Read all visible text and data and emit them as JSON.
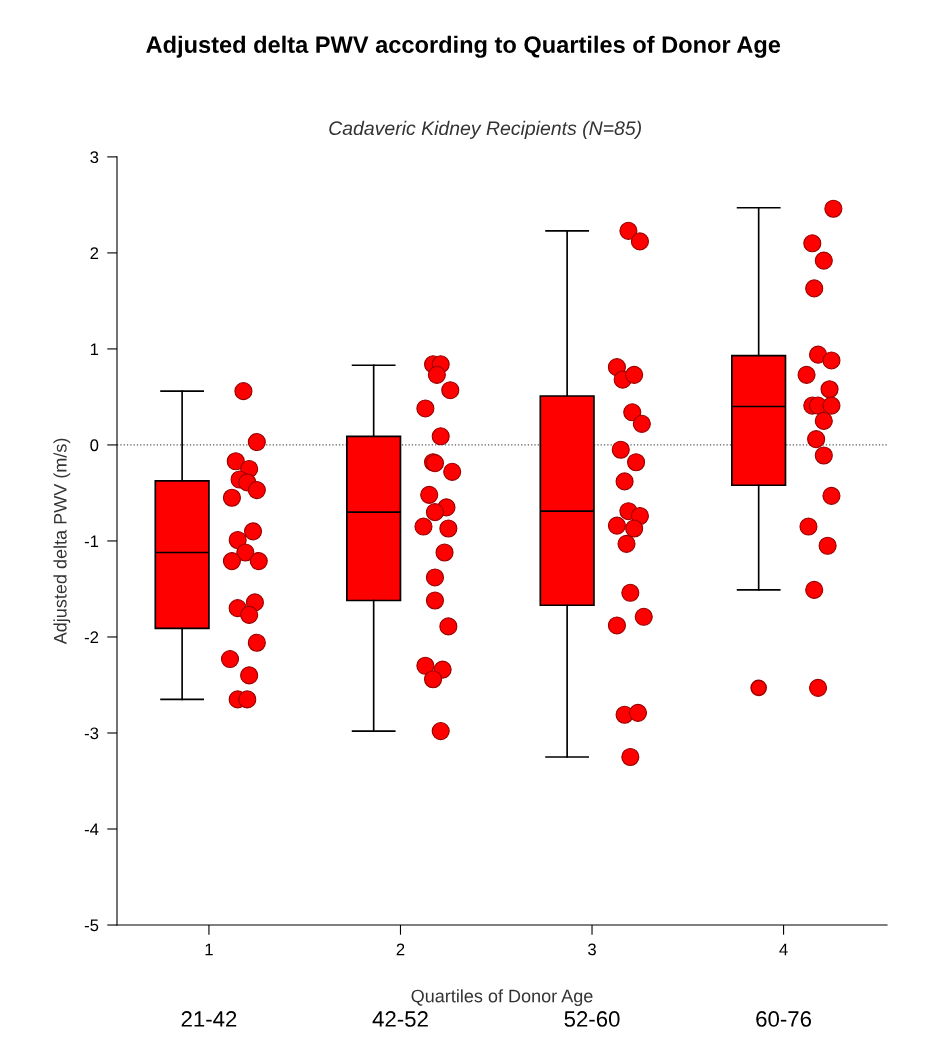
{
  "chart_data": {
    "type": "box",
    "title": "Adjusted delta PWV according to Quartiles of Donor Age",
    "subtitle": "Cadaveric Kidney Recipients (N=85)",
    "xlabel": "Quartiles of Donor Age",
    "ylabel": "Adjusted delta PWV (m/s)",
    "xlim": [
      0.52,
      4.54
    ],
    "xticks": [
      1,
      2,
      3,
      4
    ],
    "ylim": [
      -5,
      3
    ],
    "yticks": [
      -5,
      -4,
      -3,
      -2,
      -1,
      0,
      1,
      2,
      3
    ],
    "grid": false,
    "legend": false,
    "ref_lines": [
      {
        "axis": "y",
        "value": 0,
        "line_style": "dotted",
        "color": "#555555"
      }
    ],
    "annotations": [
      "21-42",
      "42-52",
      "52-60",
      "60-76"
    ],
    "series": [
      {
        "color": "#ff0000",
        "x": [
          0.86,
          1.86,
          2.87,
          3.87
        ],
        "boxes": [
          {
            "low": -2.65,
            "q1": -1.91,
            "median": -1.12,
            "q3": -0.375,
            "high": 0.56
          },
          {
            "low": -2.98,
            "q1": -1.62,
            "median": -0.7,
            "q3": 0.09,
            "high": 0.83
          },
          {
            "low": -3.25,
            "q1": -1.67,
            "median": -0.69,
            "q3": 0.51,
            "high": 2.23
          },
          {
            "low": -1.51,
            "q1": -0.42,
            "median": 0.4,
            "q3": 0.93,
            "high": 2.47,
            "outliers": [
              -2.53
            ]
          }
        ]
      },
      {
        "type": "scatter",
        "color": "#ff0000",
        "marker": "circle",
        "x": [
          1.18,
          1.25,
          1.14,
          1.21,
          1.16,
          1.2,
          1.25,
          1.12,
          1.23,
          1.15,
          1.19,
          1.12,
          1.26,
          1.24,
          1.15,
          1.21,
          1.25,
          1.11,
          1.21,
          1.15,
          1.2,
          2.17,
          2.21,
          2.19,
          2.26,
          2.13,
          2.21,
          2.17,
          2.18,
          2.27,
          2.15,
          2.24,
          2.18,
          2.12,
          2.25,
          2.23,
          2.18,
          2.18,
          2.25,
          2.13,
          2.22,
          2.17,
          2.21,
          3.19,
          3.25,
          3.13,
          3.16,
          3.22,
          3.21,
          3.26,
          3.15,
          3.23,
          3.17,
          3.19,
          3.25,
          3.13,
          3.22,
          3.18,
          3.2,
          3.27,
          3.13,
          3.17,
          3.24,
          3.2,
          4.26,
          4.15,
          4.21,
          4.16,
          4.18,
          4.25,
          4.12,
          4.24,
          4.15,
          4.18,
          4.25,
          4.21,
          4.17,
          4.21,
          4.25,
          4.13,
          4.23,
          4.16,
          4.18
        ],
        "values": [
          0.56,
          0.03,
          -0.17,
          -0.25,
          -0.36,
          -0.39,
          -0.47,
          -0.55,
          -0.9,
          -0.99,
          -1.12,
          -1.21,
          -1.21,
          -1.64,
          -1.7,
          -1.77,
          -2.06,
          -2.23,
          -2.4,
          -2.65,
          -2.65,
          0.84,
          0.84,
          0.73,
          0.57,
          0.38,
          0.09,
          -0.18,
          -0.19,
          -0.28,
          -0.52,
          -0.65,
          -0.7,
          -0.85,
          -0.87,
          -1.12,
          -1.38,
          -1.62,
          -1.89,
          -2.3,
          -2.34,
          -2.44,
          -2.98,
          2.23,
          2.12,
          0.81,
          0.68,
          0.73,
          0.34,
          0.22,
          -0.05,
          -0.18,
          -0.38,
          -0.69,
          -0.74,
          -0.84,
          -0.87,
          -1.03,
          -1.54,
          -1.79,
          -1.88,
          -2.81,
          -2.79,
          -3.25,
          2.46,
          2.1,
          1.92,
          1.63,
          0.94,
          0.88,
          0.73,
          0.58,
          0.41,
          0.41,
          0.41,
          0.25,
          0.06,
          -0.11,
          -0.53,
          -0.85,
          -1.05,
          -1.51,
          -2.53
        ]
      }
    ]
  }
}
